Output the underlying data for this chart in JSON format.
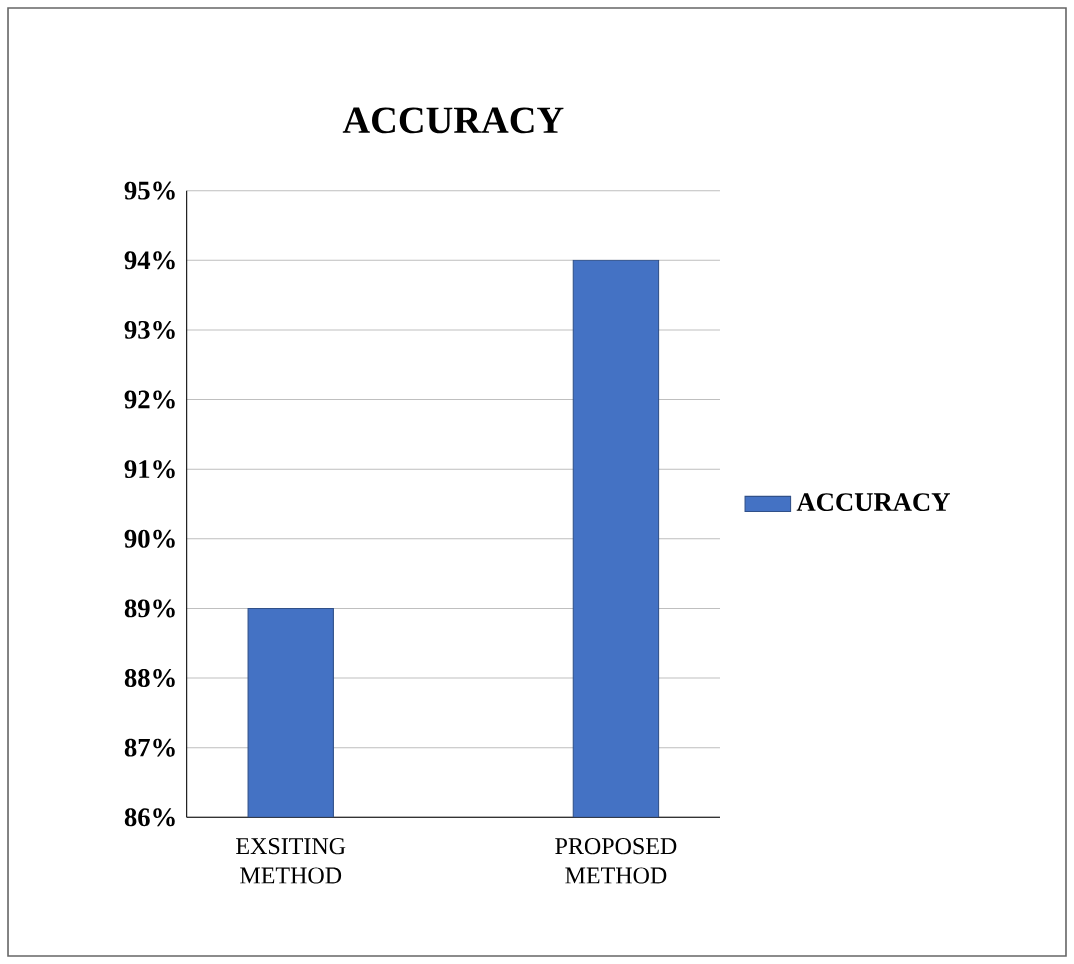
{
  "chart_data": {
    "type": "bar",
    "title": "ACCURACY",
    "categories": [
      "EXSITING METHOD",
      "PROPOSED METHOD"
    ],
    "series": [
      {
        "name": "ACCURACY",
        "color": "#4472c4",
        "values": [
          89,
          94
        ]
      }
    ],
    "ylim": [
      86,
      95
    ],
    "yticks": [
      {
        "value": 86,
        "label": "86%"
      },
      {
        "value": 87,
        "label": "87%"
      },
      {
        "value": 88,
        "label": "88%"
      },
      {
        "value": 89,
        "label": "89%"
      },
      {
        "value": 90,
        "label": "90%"
      },
      {
        "value": 91,
        "label": "91%"
      },
      {
        "value": 92,
        "label": "92%"
      },
      {
        "value": 93,
        "label": "93%"
      },
      {
        "value": 94,
        "label": "94%"
      },
      {
        "value": 95,
        "label": "95%"
      }
    ],
    "grid": "y",
    "legend": "right"
  }
}
